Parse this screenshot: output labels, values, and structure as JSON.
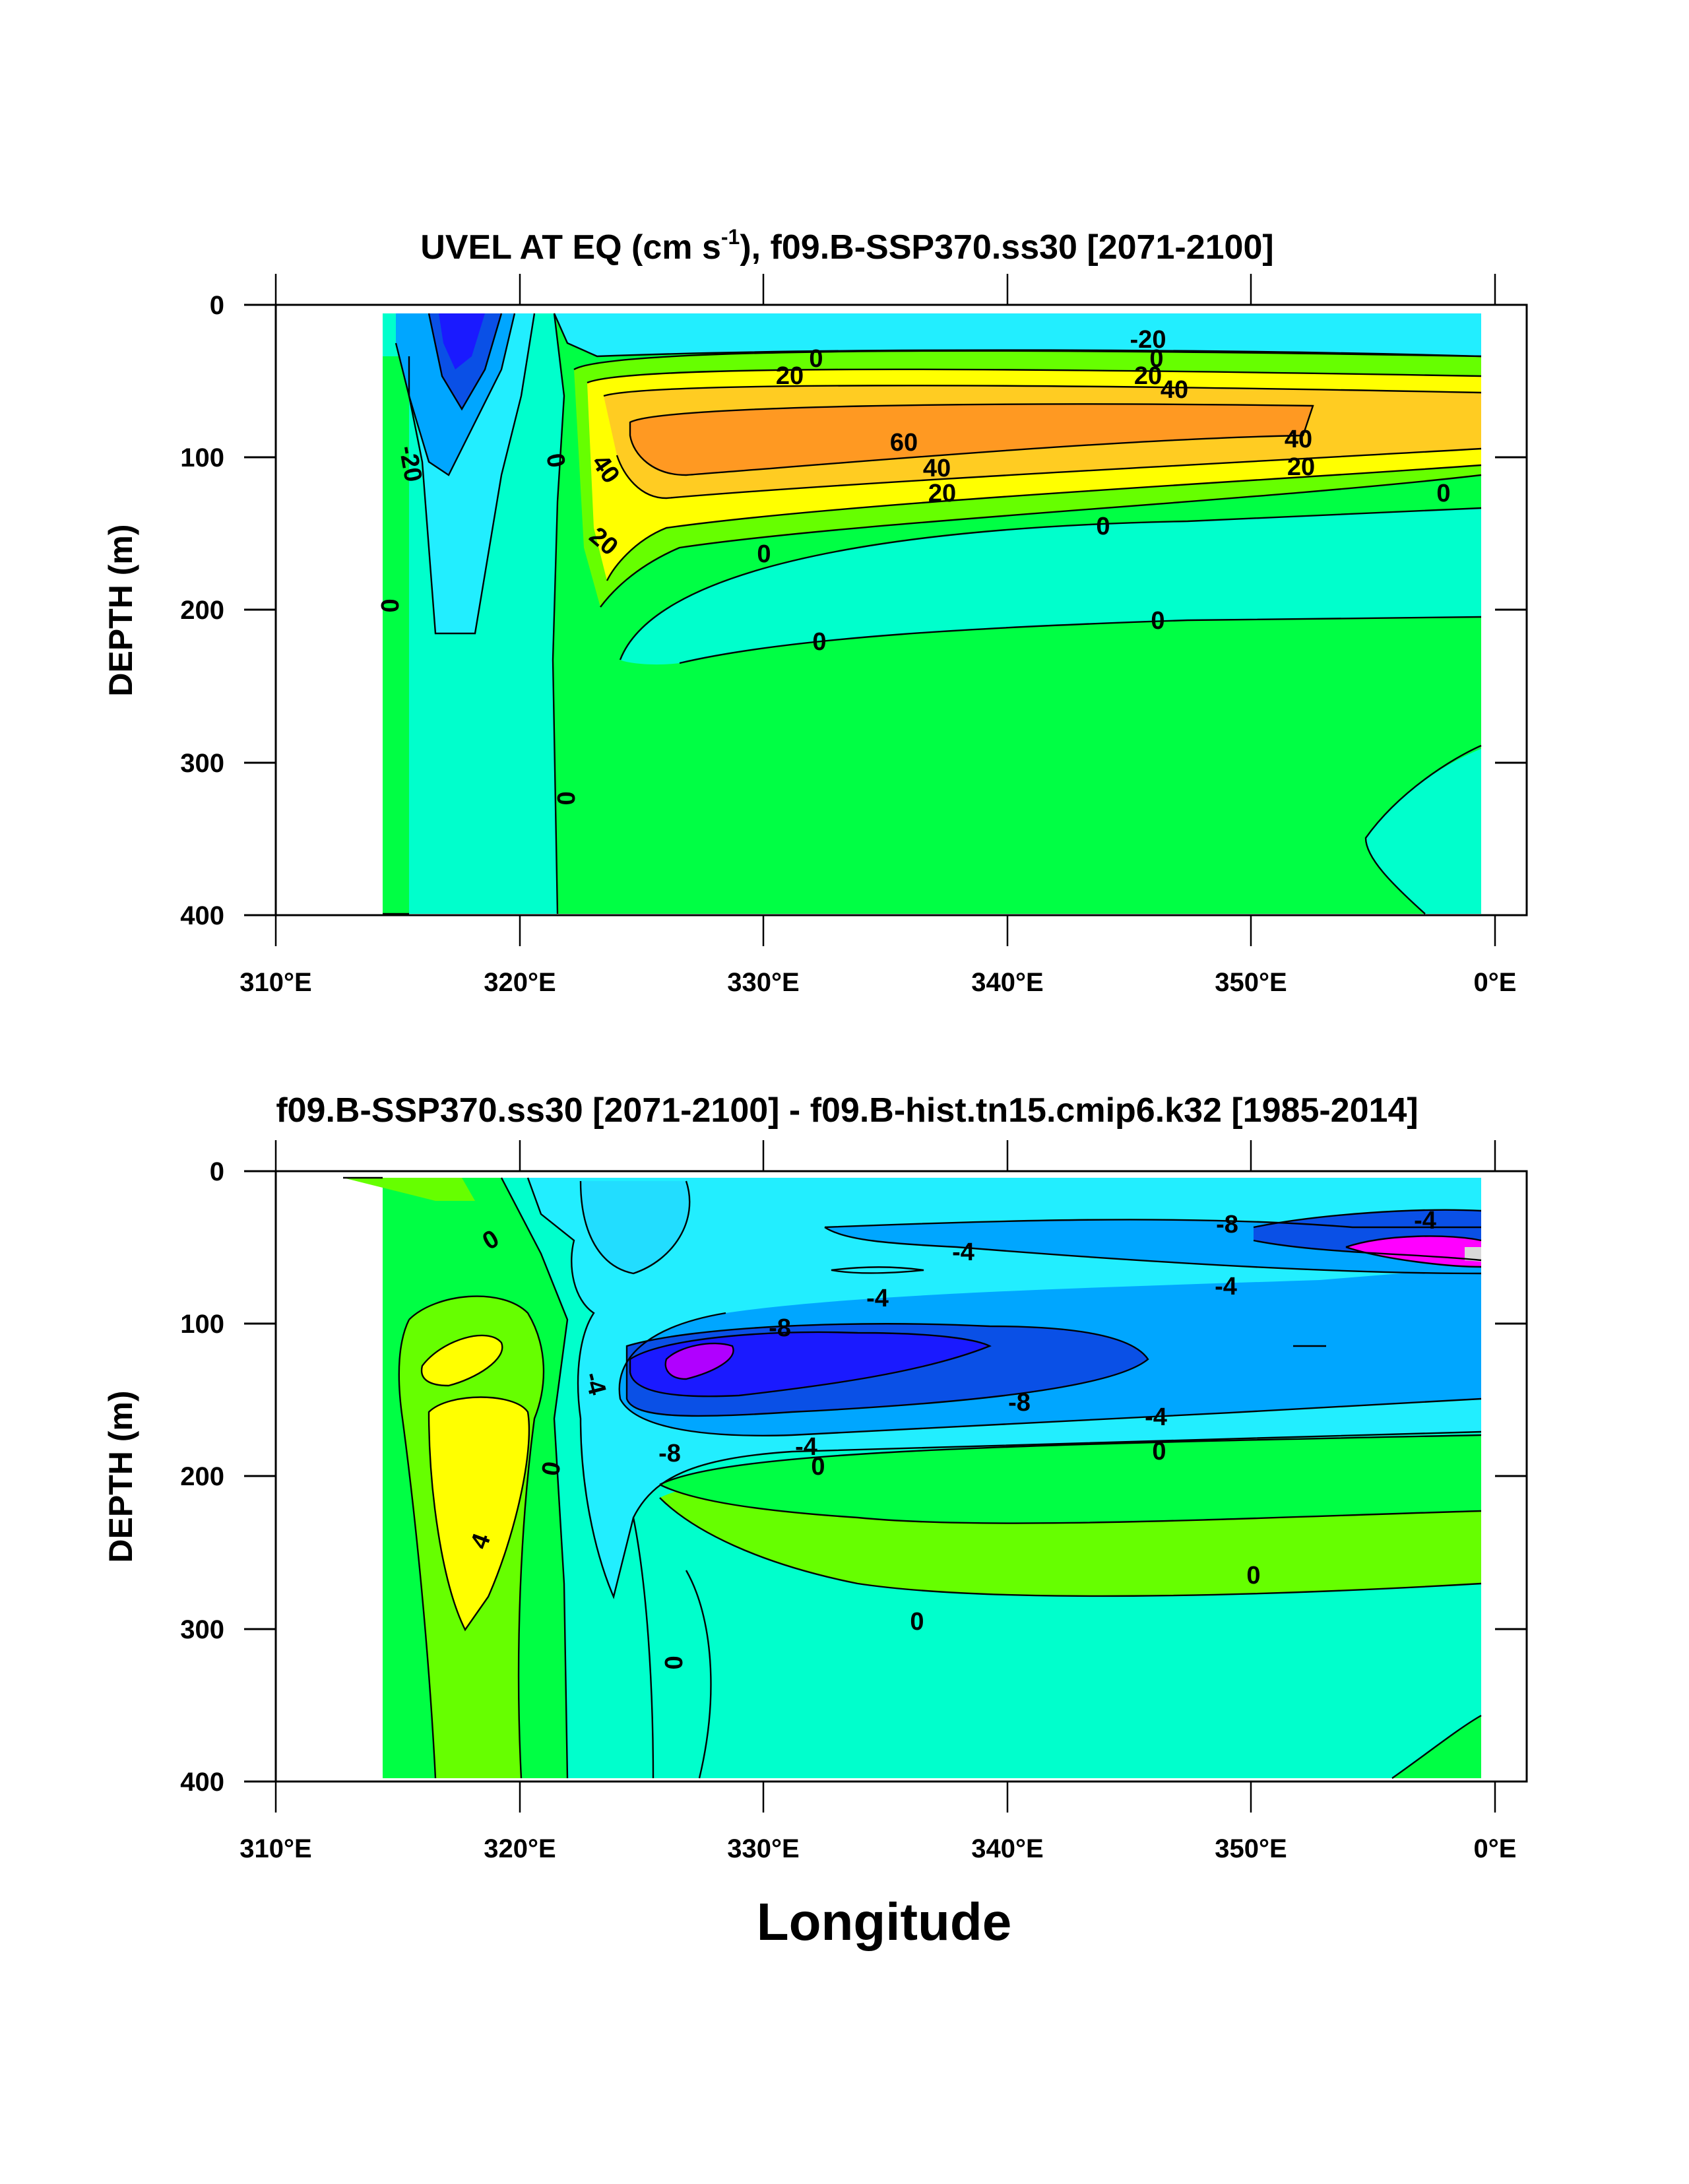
{
  "chart_data": [
    {
      "type": "contour",
      "title": "UVEL AT EQ (cm s",
      "title_sup": "-1",
      "title_rest": "), f09.B-SSP370.ss30 [2071-2100]",
      "ylabel": "DEPTH (m)",
      "xlabel": "",
      "xlim": [
        310,
        360
      ],
      "ylim": [
        0,
        400
      ],
      "y_inverted": true,
      "yticks": [
        0,
        100,
        200,
        300,
        400
      ],
      "xticks": [
        "310°E",
        "320°E",
        "330°E",
        "340°E",
        "350°E",
        "0°E"
      ],
      "contour_labels": [
        {
          "text": "-20",
          "x": 346,
          "y": 22
        },
        {
          "text": "0",
          "x": 345.5,
          "y": 37
        },
        {
          "text": "-20",
          "x": 315.4,
          "y": 105
        },
        {
          "text": "0",
          "x": 332.2,
          "y": 33
        },
        {
          "text": "20",
          "x": 331.1,
          "y": 47
        },
        {
          "text": "20",
          "x": 345.5,
          "y": 47
        },
        {
          "text": "40",
          "x": 346.8,
          "y": 55
        },
        {
          "text": "60",
          "x": 335.8,
          "y": 90
        },
        {
          "text": "40",
          "x": 352.1,
          "y": 88
        },
        {
          "text": "40",
          "x": 337.4,
          "y": 107
        },
        {
          "text": "20",
          "x": 352.2,
          "y": 106
        },
        {
          "text": "20",
          "x": 337.4,
          "y": 124
        },
        {
          "text": "0",
          "x": 357.1,
          "y": 124
        },
        {
          "text": "0",
          "x": 321.2,
          "y": 105
        },
        {
          "text": "40",
          "x": 323.1,
          "y": 113
        },
        {
          "text": "20",
          "x": 323.2,
          "y": 157
        },
        {
          "text": "0",
          "x": 344.0,
          "y": 158
        },
        {
          "text": "0",
          "x": 330.1,
          "y": 177
        },
        {
          "text": "0",
          "x": 314.2,
          "y": 198
        },
        {
          "text": "0",
          "x": 346.2,
          "y": 205
        },
        {
          "text": "0",
          "x": 332.2,
          "y": 222
        },
        {
          "text": "0",
          "x": 321.5,
          "y": 323
        }
      ]
    },
    {
      "type": "contour",
      "title": "f09.B-SSP370.ss30 [2071-2100] - f09.B-hist.tn15.cmip6.k32 [1985-2014]",
      "ylabel": "DEPTH (m)",
      "xlabel": "Longitude",
      "xlim": [
        310,
        360
      ],
      "ylim": [
        0,
        400
      ],
      "y_inverted": true,
      "yticks": [
        0,
        100,
        200,
        300,
        400
      ],
      "xticks": [
        "310°E",
        "320°E",
        "330°E",
        "340°E",
        "350°E",
        "0°E"
      ],
      "contour_labels": [
        {
          "text": "0",
          "x": 318.8,
          "y": 43
        },
        {
          "text": "-8",
          "x": 349.2,
          "y": 35
        },
        {
          "text": "-4",
          "x": 357.1,
          "y": 33
        },
        {
          "text": "-4",
          "x": 337.1,
          "y": 53
        },
        {
          "text": "-4",
          "x": 334.8,
          "y": 83
        },
        {
          "text": "-4",
          "x": 349.1,
          "y": 75
        },
        {
          "text": "-8",
          "x": 330.7,
          "y": 103
        },
        {
          "text": "-4",
          "x": 322.9,
          "y": 137
        },
        {
          "text": "-8",
          "x": 340.3,
          "y": 152
        },
        {
          "text": "-4",
          "x": 346.0,
          "y": 162
        },
        {
          "text": "0",
          "x": 321.6,
          "y": 190
        },
        {
          "text": "-8",
          "x": 326.2,
          "y": 185
        },
        {
          "text": "-4",
          "x": 331.7,
          "y": 180
        },
        {
          "text": "0",
          "x": 346.0,
          "y": 183
        },
        {
          "text": "0",
          "x": 332.4,
          "y": 196
        },
        {
          "text": "4",
          "x": 318.4,
          "y": 240
        },
        {
          "text": "0",
          "x": 350.2,
          "y": 264
        },
        {
          "text": "0",
          "x": 336.1,
          "y": 295
        },
        {
          "text": "0",
          "x": 326.2,
          "y": 318
        }
      ]
    }
  ],
  "colors": {
    "bg": "#ffffff",
    "neg_deep": "#1a1aff",
    "neg_strong": "#0a50e6",
    "neg_mid": "#00a6ff",
    "neg_light": "#22ddff",
    "near_zero_neg": "#00ffee",
    "near_zero": "#00ffcc",
    "zero_pos": "#00ff44",
    "pos_light": "#66ff00",
    "pos_yellow": "#ffff00",
    "pos_gold": "#ffcc22",
    "pos_orange": "#ff9922",
    "magenta": "#ff00ff",
    "purple": "#b000ff"
  }
}
